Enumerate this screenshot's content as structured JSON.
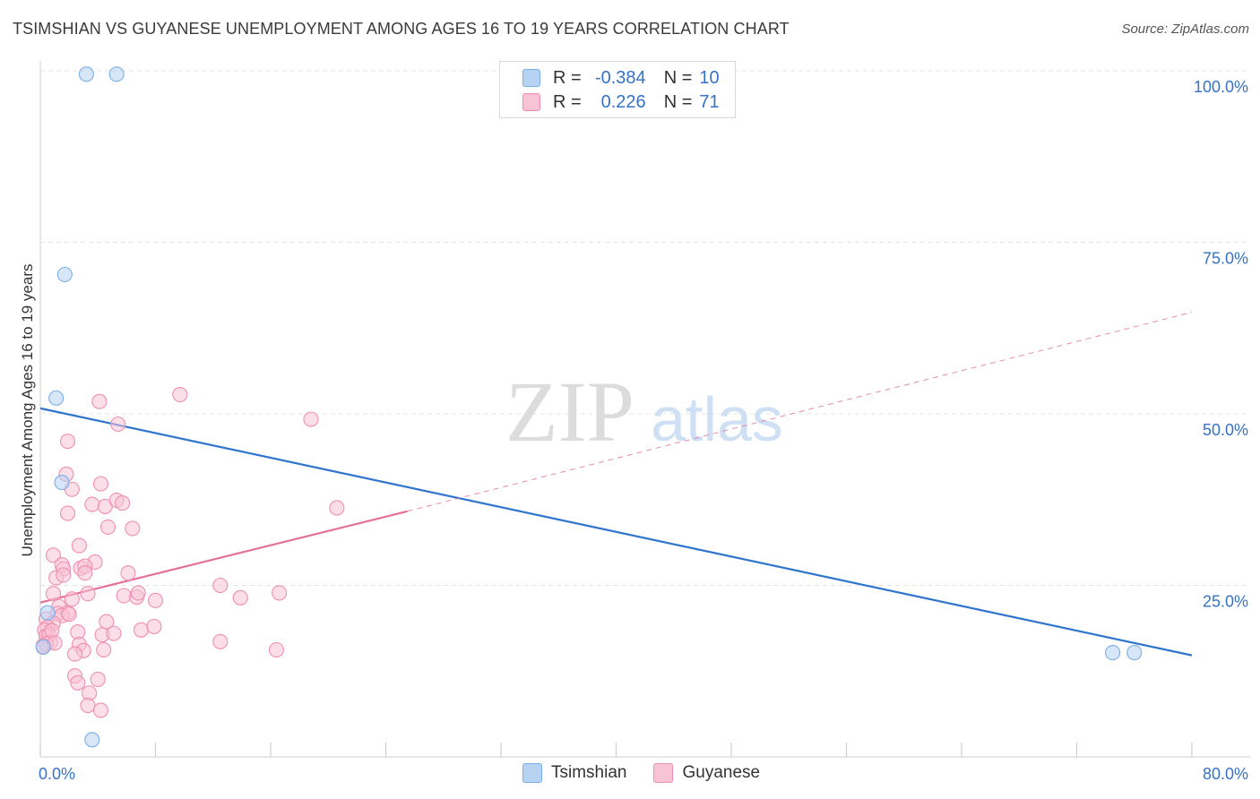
{
  "chart_data": {
    "type": "scatter",
    "title": "TSIMSHIAN VS GUYANESE UNEMPLOYMENT AMONG AGES 16 TO 19 YEARS CORRELATION CHART",
    "source": "Source: ZipAtlas.com",
    "xlabel": "",
    "ylabel": "Unemployment Among Ages 16 to 19 years",
    "xlim": [
      0,
      80
    ],
    "ylim": [
      0,
      100
    ],
    "x_tick_labels": [
      "0.0%",
      "80.0%"
    ],
    "y_ticks": [
      25,
      50,
      75,
      100
    ],
    "y_tick_labels": [
      "25.0%",
      "50.0%",
      "75.0%",
      "100.0%"
    ],
    "watermark": {
      "zip": "ZIP",
      "atlas": "atlas"
    },
    "legend": {
      "r_label": "R =",
      "n_label": "N =",
      "entries": [
        {
          "name": "Tsimshian",
          "r": "-0.384",
          "n": "10"
        },
        {
          "name": "Guyanese",
          "r": "0.226",
          "n": "71"
        }
      ]
    },
    "series": [
      {
        "name": "Tsimshian",
        "color": "#7aaee8",
        "fill": "#b7d3f4",
        "line_color": "#2f74cf",
        "trend": {
          "x": [
            0,
            80
          ],
          "y": [
            50.8,
            14.8
          ],
          "dashed_from": null
        },
        "points": [
          {
            "x": 3.2,
            "y": 99.5
          },
          {
            "x": 5.3,
            "y": 99.5
          },
          {
            "x": 1.7,
            "y": 70.3
          },
          {
            "x": 1.1,
            "y": 52.3
          },
          {
            "x": 1.5,
            "y": 40.0
          },
          {
            "x": 0.5,
            "y": 21.0
          },
          {
            "x": 0.2,
            "y": 16.0
          },
          {
            "x": 3.6,
            "y": 2.5
          },
          {
            "x": 74.5,
            "y": 15.2
          },
          {
            "x": 76.0,
            "y": 15.2
          }
        ]
      },
      {
        "name": "Guyanese",
        "color": "#f08eb0",
        "fill": "#f8c3d5",
        "line_color": "#e5709a",
        "trend": {
          "x": [
            0,
            25.5
          ],
          "y": [
            22.5,
            35.8
          ],
          "dashed_to": {
            "x": 80,
            "y": 64.8
          }
        },
        "points": [
          {
            "x": 4.1,
            "y": 51.8
          },
          {
            "x": 9.7,
            "y": 52.8
          },
          {
            "x": 5.4,
            "y": 48.5
          },
          {
            "x": 18.8,
            "y": 49.2
          },
          {
            "x": 1.9,
            "y": 46.0
          },
          {
            "x": 1.8,
            "y": 41.2
          },
          {
            "x": 2.2,
            "y": 39.0
          },
          {
            "x": 4.2,
            "y": 39.8
          },
          {
            "x": 3.6,
            "y": 36.8
          },
          {
            "x": 4.5,
            "y": 36.5
          },
          {
            "x": 5.3,
            "y": 37.4
          },
          {
            "x": 5.7,
            "y": 37.0
          },
          {
            "x": 20.6,
            "y": 36.3
          },
          {
            "x": 1.9,
            "y": 35.5
          },
          {
            "x": 4.7,
            "y": 33.5
          },
          {
            "x": 6.4,
            "y": 33.3
          },
          {
            "x": 2.7,
            "y": 30.8
          },
          {
            "x": 0.9,
            "y": 29.4
          },
          {
            "x": 1.5,
            "y": 28.0
          },
          {
            "x": 3.8,
            "y": 28.4
          },
          {
            "x": 2.8,
            "y": 27.5
          },
          {
            "x": 3.1,
            "y": 27.8
          },
          {
            "x": 1.6,
            "y": 27.4
          },
          {
            "x": 3.1,
            "y": 26.8
          },
          {
            "x": 1.1,
            "y": 26.1
          },
          {
            "x": 1.6,
            "y": 26.5
          },
          {
            "x": 6.1,
            "y": 26.8
          },
          {
            "x": 12.5,
            "y": 25.0
          },
          {
            "x": 16.6,
            "y": 23.9
          },
          {
            "x": 3.3,
            "y": 23.8
          },
          {
            "x": 5.8,
            "y": 23.5
          },
          {
            "x": 6.7,
            "y": 23.3
          },
          {
            "x": 6.8,
            "y": 23.9
          },
          {
            "x": 8.0,
            "y": 22.8
          },
          {
            "x": 13.9,
            "y": 23.2
          },
          {
            "x": 2.2,
            "y": 23.0
          },
          {
            "x": 0.9,
            "y": 23.8
          },
          {
            "x": 1.3,
            "y": 21.9
          },
          {
            "x": 1.2,
            "y": 20.9
          },
          {
            "x": 1.9,
            "y": 21.0
          },
          {
            "x": 1.5,
            "y": 20.6
          },
          {
            "x": 0.4,
            "y": 20.1
          },
          {
            "x": 0.9,
            "y": 19.5
          },
          {
            "x": 0.5,
            "y": 18.9
          },
          {
            "x": 2.6,
            "y": 18.2
          },
          {
            "x": 4.6,
            "y": 19.7
          },
          {
            "x": 7.0,
            "y": 18.5
          },
          {
            "x": 7.9,
            "y": 19.0
          },
          {
            "x": 0.3,
            "y": 18.5
          },
          {
            "x": 0.4,
            "y": 17.6
          },
          {
            "x": 0.6,
            "y": 17.8
          },
          {
            "x": 4.3,
            "y": 17.8
          },
          {
            "x": 5.1,
            "y": 18.0
          },
          {
            "x": 0.7,
            "y": 16.7
          },
          {
            "x": 0.4,
            "y": 16.5
          },
          {
            "x": 2.7,
            "y": 16.4
          },
          {
            "x": 3.0,
            "y": 15.5
          },
          {
            "x": 2.4,
            "y": 15.0
          },
          {
            "x": 4.4,
            "y": 15.6
          },
          {
            "x": 12.5,
            "y": 16.8
          },
          {
            "x": 16.4,
            "y": 15.6
          },
          {
            "x": 2.4,
            "y": 11.8
          },
          {
            "x": 4.0,
            "y": 11.3
          },
          {
            "x": 2.6,
            "y": 10.8
          },
          {
            "x": 3.4,
            "y": 9.3
          },
          {
            "x": 3.3,
            "y": 7.5
          },
          {
            "x": 4.2,
            "y": 6.8
          },
          {
            "x": 0.2,
            "y": 16.2
          },
          {
            "x": 2.0,
            "y": 20.8
          },
          {
            "x": 0.8,
            "y": 18.4
          },
          {
            "x": 1.0,
            "y": 16.6
          }
        ]
      }
    ]
  }
}
